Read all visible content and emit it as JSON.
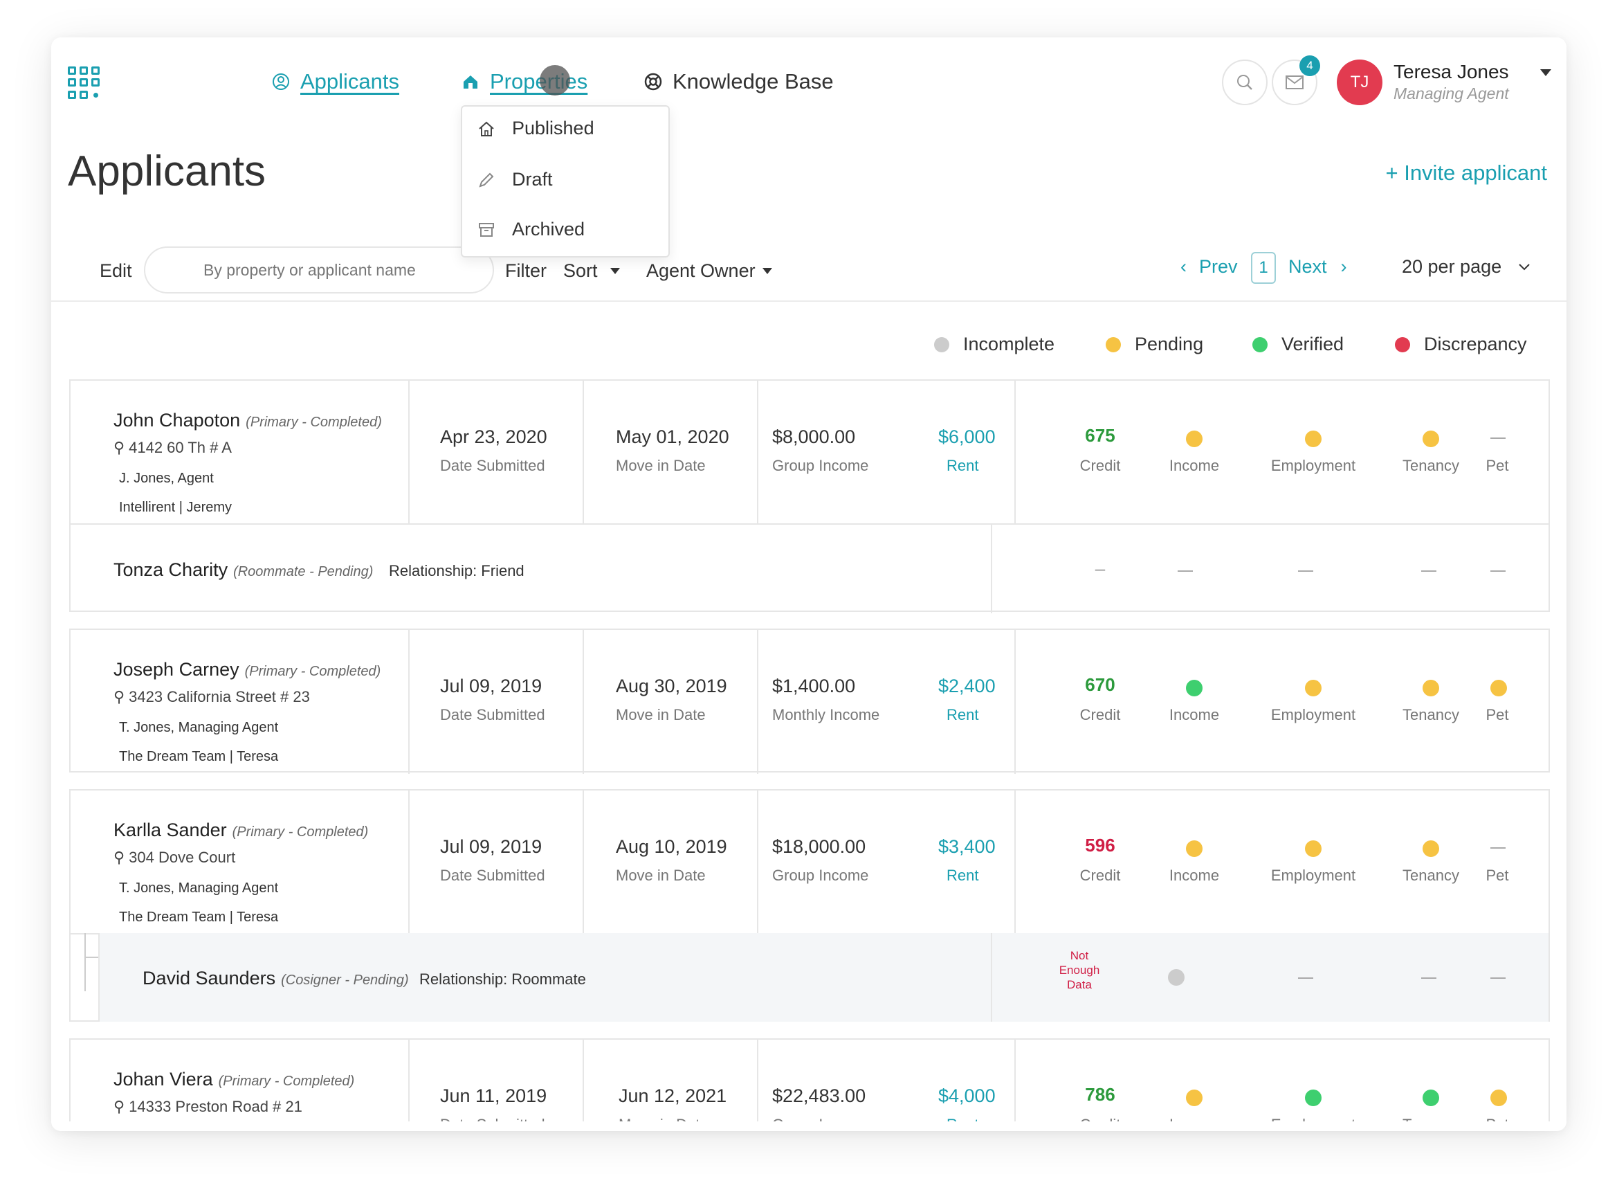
{
  "nav": {
    "applicants": "Applicants",
    "properties": "Properties",
    "knowledge_base": "Knowledge Base",
    "notifications_count": "4",
    "user": {
      "initials": "TJ",
      "name": "Teresa Jones",
      "role": "Managing Agent"
    }
  },
  "properties_menu": [
    "Published",
    "Draft",
    "Archived"
  ],
  "page": {
    "title": "Applicants",
    "invite": "+ Invite applicant"
  },
  "toolbar": {
    "edit": "Edit",
    "search_placeholder": "By property or applicant name",
    "filter": "Filter",
    "sort": "Sort",
    "agent_owner": "Agent Owner",
    "prev": "Prev",
    "page": "1",
    "next": "Next",
    "per_page": "20 per page"
  },
  "legend": {
    "incomplete": "Incomplete",
    "pending": "Pending",
    "verified": "Verified",
    "discrepancy": "Discrepancy"
  },
  "colors": {
    "accent": "#1a9fb0",
    "pending": "#f6c343",
    "verified": "#3ecf6f",
    "discrepancy": "#e23b50",
    "incomplete": "#cccccc"
  },
  "labels": {
    "date_submitted": "Date Submitted",
    "move_in": "Move in Date",
    "rent": "Rent",
    "credit": "Credit",
    "income": "Income",
    "employment": "Employment",
    "tenancy": "Tenancy",
    "pet": "Pet"
  },
  "applicants": [
    {
      "name": "John Chapoton",
      "role": "(Primary - Completed)",
      "address": "4142 60 Th # A",
      "agent": "J. Jones, Agent",
      "team": "Intellirent | Jeremy",
      "submitted": "Apr 23, 2020",
      "move_in": "May 01, 2020",
      "income": "$8,000.00",
      "income_label": "Group Income",
      "rent": "$6,000",
      "credit": "675",
      "sub": {
        "name": "Tonza Charity",
        "role": "(Roommate - Pending)",
        "relationship": "Relationship: Friend",
        "credit": "–"
      }
    },
    {
      "name": "Joseph Carney",
      "role": "(Primary - Completed)",
      "address": "3423 California Street # 23",
      "agent": "T. Jones, Managing Agent",
      "team": "The Dream Team | Teresa",
      "submitted": "Jul 09, 2019",
      "move_in": "Aug 30, 2019",
      "income": "$1,400.00",
      "income_label": "Monthly Income",
      "rent": "$2,400",
      "credit": "670"
    },
    {
      "name": "Karlla Sander",
      "role": "(Primary - Completed)",
      "address": "304 Dove Court",
      "agent": "T. Jones, Managing Agent",
      "team": "The Dream Team | Teresa",
      "submitted": "Jul 09, 2019",
      "move_in": "Aug 10, 2019",
      "income": "$18,000.00",
      "income_label": "Group Income",
      "rent": "$3,400",
      "credit": "596",
      "sub": {
        "name": "David Saunders",
        "role": "(Cosigner - Pending)",
        "relationship": "Relationship: Roommate",
        "credit_line1": "Not",
        "credit_line2": "Enough",
        "credit_line3": "Data"
      }
    },
    {
      "name": "Johan Viera",
      "role": "(Primary - Completed)",
      "address": "14333 Preston Road # 21",
      "submitted": "Jun 11, 2019",
      "move_in": "Jun 12, 2021",
      "income": "$22,483.00",
      "income_label": "Group Income",
      "rent": "$4,000",
      "credit": "786"
    }
  ]
}
